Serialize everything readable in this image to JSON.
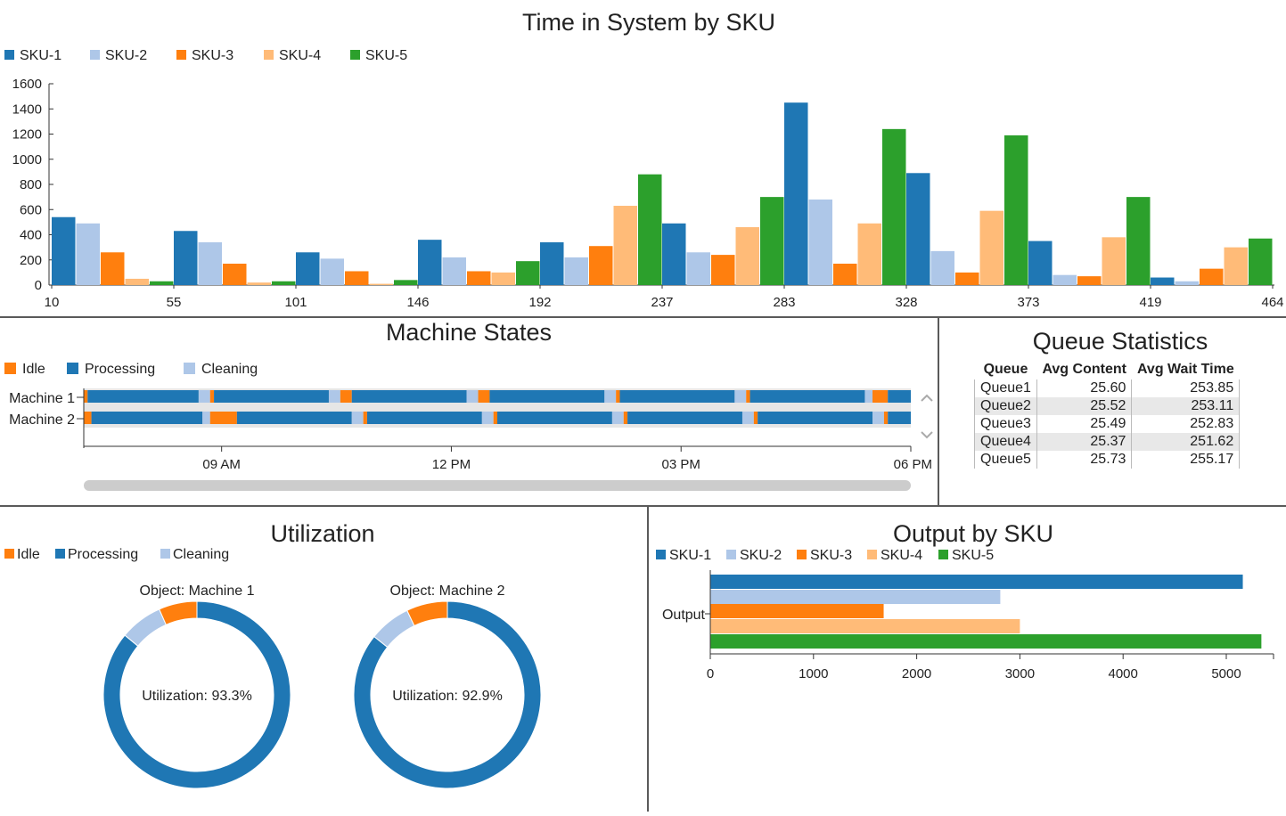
{
  "colors": {
    "sku1": "#1f77b4",
    "sku2": "#aec7e8",
    "sku3": "#ff7f0e",
    "sku4": "#ffbb78",
    "sku5": "#2ca02c",
    "idle": "#ff7f0e",
    "processing": "#1f77b4",
    "cleaning": "#aec7e8"
  },
  "time_in_system": {
    "title": "Time in System by SKU",
    "legend": [
      "SKU-1",
      "SKU-2",
      "SKU-3",
      "SKU-4",
      "SKU-5"
    ],
    "x_ticks": [
      "10",
      "55",
      "101",
      "146",
      "192",
      "237",
      "283",
      "328",
      "373",
      "419",
      "464"
    ],
    "y_ticks": [
      "0",
      "200",
      "400",
      "600",
      "800",
      "1000",
      "1200",
      "1400",
      "1600"
    ]
  },
  "machine_states": {
    "title": "Machine States",
    "legend": [
      "Idle",
      "Processing",
      "Cleaning"
    ],
    "machines": [
      "Machine 1",
      "Machine 2"
    ],
    "time_ticks": [
      "09 AM",
      "12 PM",
      "03 PM",
      "06 PM"
    ]
  },
  "queue_statistics": {
    "title": "Queue Statistics",
    "headers": [
      "Queue",
      "Avg Content",
      "Avg Wait Time"
    ],
    "rows": [
      [
        "Queue1",
        "25.60",
        "253.85"
      ],
      [
        "Queue2",
        "25.52",
        "253.11"
      ],
      [
        "Queue3",
        "25.49",
        "252.83"
      ],
      [
        "Queue4",
        "25.37",
        "251.62"
      ],
      [
        "Queue5",
        "25.73",
        "255.17"
      ]
    ]
  },
  "utilization": {
    "title": "Utilization",
    "legend": [
      "Idle",
      "Processing",
      "Cleaning"
    ],
    "machines": [
      {
        "label": "Object: Machine 1",
        "text": "Utilization: 93.3%"
      },
      {
        "label": "Object: Machine 2",
        "text": "Utilization: 92.9%"
      }
    ]
  },
  "output_by_sku": {
    "title": "Output by SKU",
    "legend": [
      "SKU-1",
      "SKU-2",
      "SKU-3",
      "SKU-4",
      "SKU-5"
    ],
    "category": "Output",
    "x_ticks": [
      "0",
      "1000",
      "2000",
      "3000",
      "4000",
      "5000"
    ]
  },
  "chart_data": [
    {
      "type": "bar",
      "title": "Time in System by SKU",
      "xlabel": "",
      "ylabel": "",
      "ylim": [
        0,
        1600
      ],
      "categories": [
        "10",
        "55",
        "101",
        "146",
        "192",
        "237",
        "283",
        "328",
        "373",
        "419"
      ],
      "legend_position": "top-left",
      "series": [
        {
          "name": "SKU-1",
          "values": [
            540,
            430,
            260,
            360,
            340,
            490,
            1450,
            890,
            350,
            60
          ]
        },
        {
          "name": "SKU-2",
          "values": [
            490,
            340,
            210,
            220,
            220,
            260,
            680,
            270,
            80,
            30
          ]
        },
        {
          "name": "SKU-3",
          "values": [
            260,
            170,
            110,
            110,
            310,
            240,
            170,
            100,
            70,
            130
          ]
        },
        {
          "name": "SKU-4",
          "values": [
            50,
            20,
            10,
            100,
            630,
            460,
            490,
            590,
            380,
            300
          ]
        },
        {
          "name": "SKU-5",
          "values": [
            30,
            30,
            40,
            190,
            880,
            700,
            1240,
            1190,
            700,
            370
          ]
        }
      ]
    },
    {
      "type": "gantt",
      "title": "Machine States",
      "legend": [
        "Idle",
        "Processing",
        "Cleaning"
      ],
      "time_range_hours": [
        7.2,
        18.0
      ],
      "rows": [
        {
          "name": "Machine 1",
          "segments": [
            [
              "Idle",
              7.2,
              7.25
            ],
            [
              "Processing",
              7.25,
              8.7
            ],
            [
              "Cleaning",
              8.7,
              8.85
            ],
            [
              "Idle",
              8.85,
              8.9
            ],
            [
              "Processing",
              8.9,
              10.4
            ],
            [
              "Cleaning",
              10.4,
              10.55
            ],
            [
              "Idle",
              10.55,
              10.7
            ],
            [
              "Processing",
              10.7,
              12.2
            ],
            [
              "Cleaning",
              12.2,
              12.35
            ],
            [
              "Idle",
              12.35,
              12.5
            ],
            [
              "Processing",
              12.5,
              14.0
            ],
            [
              "Cleaning",
              14.0,
              14.15
            ],
            [
              "Idle",
              14.15,
              14.2
            ],
            [
              "Processing",
              14.2,
              15.7
            ],
            [
              "Cleaning",
              15.7,
              15.85
            ],
            [
              "Idle",
              15.85,
              15.9
            ],
            [
              "Processing",
              15.9,
              17.4
            ],
            [
              "Cleaning",
              17.4,
              17.5
            ],
            [
              "Idle",
              17.5,
              17.7
            ],
            [
              "Processing",
              17.7,
              18.0
            ]
          ]
        },
        {
          "name": "Machine 2",
          "segments": [
            [
              "Idle",
              7.2,
              7.3
            ],
            [
              "Processing",
              7.3,
              8.75
            ],
            [
              "Cleaning",
              8.75,
              8.85
            ],
            [
              "Idle",
              8.85,
              9.2
            ],
            [
              "Processing",
              9.2,
              10.7
            ],
            [
              "Cleaning",
              10.7,
              10.85
            ],
            [
              "Idle",
              10.85,
              10.9
            ],
            [
              "Processing",
              10.9,
              12.4
            ],
            [
              "Cleaning",
              12.4,
              12.55
            ],
            [
              "Idle",
              12.55,
              12.6
            ],
            [
              "Processing",
              12.6,
              14.1
            ],
            [
              "Cleaning",
              14.1,
              14.25
            ],
            [
              "Idle",
              14.25,
              14.3
            ],
            [
              "Processing",
              14.3,
              15.8
            ],
            [
              "Cleaning",
              15.8,
              15.95
            ],
            [
              "Idle",
              15.95,
              16.0
            ],
            [
              "Processing",
              16.0,
              17.5
            ],
            [
              "Cleaning",
              17.5,
              17.65
            ],
            [
              "Idle",
              17.65,
              17.7
            ],
            [
              "Processing",
              17.7,
              18.0
            ]
          ]
        }
      ]
    },
    {
      "type": "pie",
      "title": "Utilization",
      "charts": [
        {
          "name": "Object: Machine 1",
          "slices": [
            {
              "label": "Processing",
              "value": 0.86
            },
            {
              "label": "Cleaning",
              "value": 0.074
            },
            {
              "label": "Idle",
              "value": 0.066
            }
          ]
        },
        {
          "name": "Object: Machine 2",
          "slices": [
            {
              "label": "Processing",
              "value": 0.857
            },
            {
              "label": "Cleaning",
              "value": 0.072
            },
            {
              "label": "Idle",
              "value": 0.071
            }
          ]
        }
      ]
    },
    {
      "type": "bar",
      "orientation": "horizontal",
      "title": "Output by SKU",
      "categories": [
        "Output"
      ],
      "xlim": [
        0,
        5500
      ],
      "series": [
        {
          "name": "SKU-1",
          "values": [
            5160
          ]
        },
        {
          "name": "SKU-2",
          "values": [
            2810
          ]
        },
        {
          "name": "SKU-3",
          "values": [
            1680
          ]
        },
        {
          "name": "SKU-4",
          "values": [
            3000
          ]
        },
        {
          "name": "SKU-5",
          "values": [
            5340
          ]
        }
      ]
    }
  ]
}
